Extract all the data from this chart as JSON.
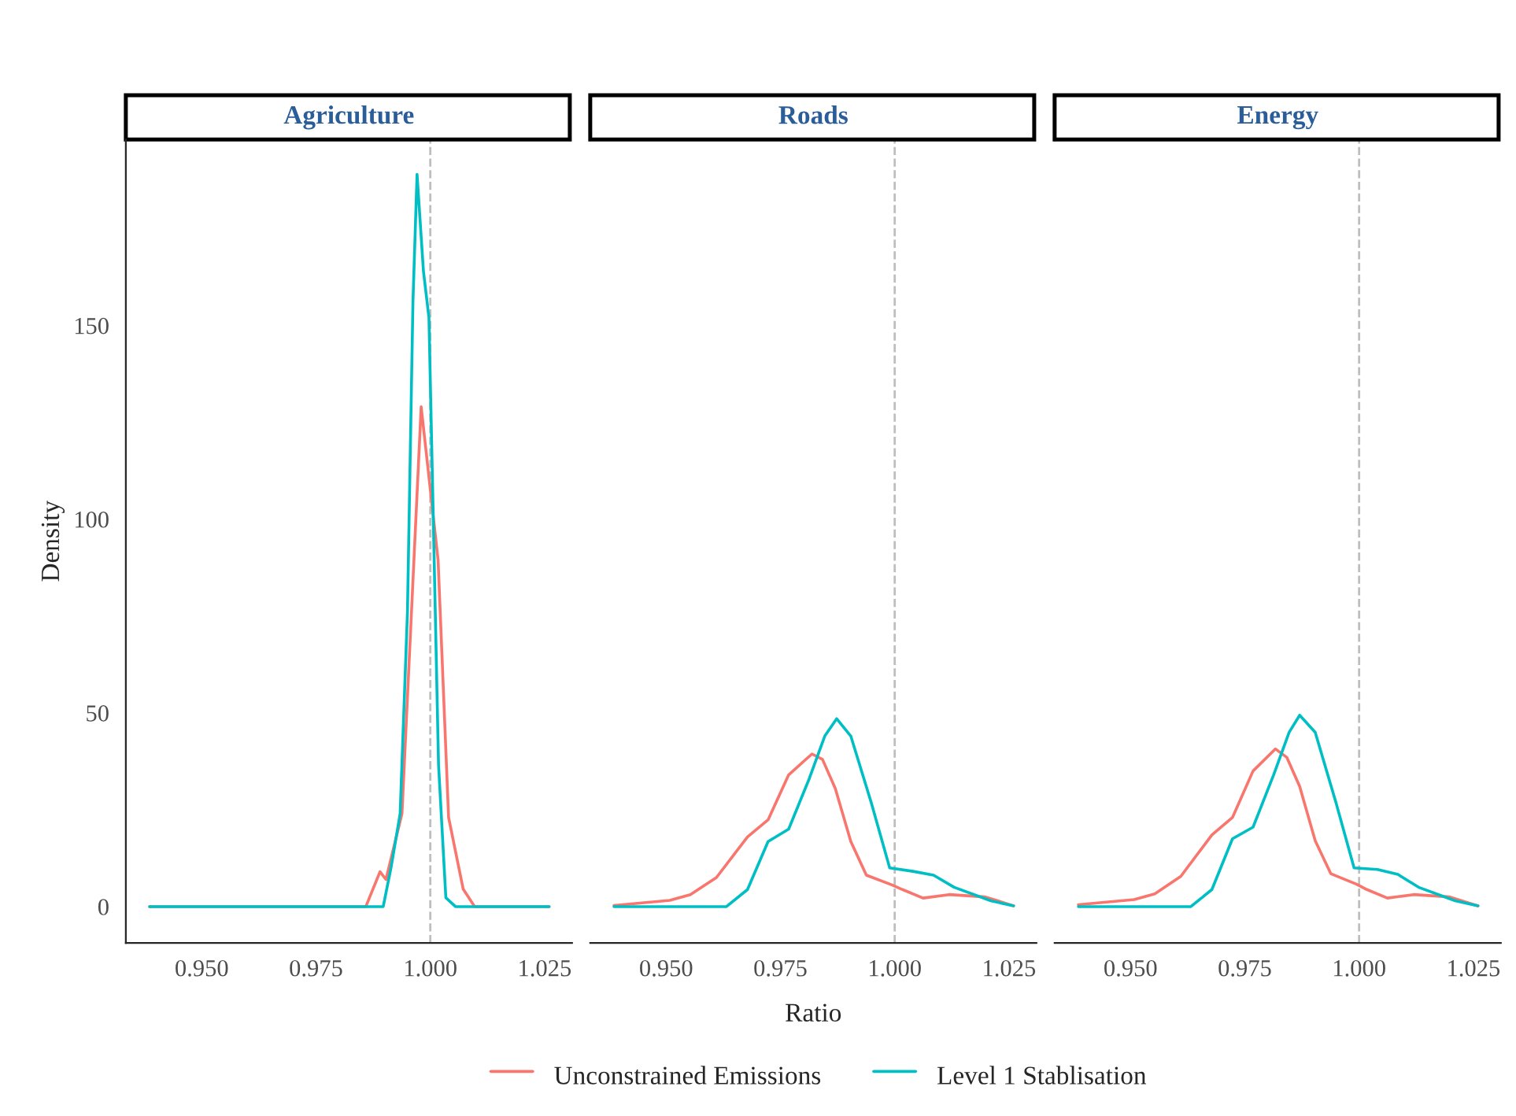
{
  "chart_data": [
    {
      "type": "line",
      "title": "Agriculture",
      "ylabel": "Density",
      "xlim": [
        0.9334,
        1.031
      ],
      "ylim": [
        -9.4,
        198
      ],
      "xticks": [
        {
          "value": 0.95,
          "label": "0.950"
        },
        {
          "value": 0.975,
          "label": "0.975"
        },
        {
          "value": 1.0,
          "label": "1.000"
        },
        {
          "value": 1.025,
          "label": "1.025"
        }
      ],
      "yticks": [
        0,
        50,
        100,
        150
      ],
      "grid": false,
      "marker": "none",
      "line_style": "solid",
      "legend": "bottom",
      "ref_lines": [
        {
          "axis": "x",
          "value": 1.0,
          "color": "#bebebe",
          "line_style": "dashed"
        }
      ],
      "series": [
        {
          "name": "Unconstrained Emissions",
          "color": "#f8766d",
          "x": [
            0.9386,
            0.9859,
            0.989,
            0.9903,
            0.9938,
            0.998,
            1.0017,
            1.004,
            1.0072,
            1.0097,
            1.026
          ],
          "values": [
            0,
            0,
            9,
            7,
            24,
            129,
            89.5,
            23,
            4.5,
            0,
            0
          ]
        },
        {
          "name": "Level 1 Stablisation",
          "color": "#00bfc4",
          "x": [
            0.9386,
            0.9897,
            0.9914,
            0.9934,
            0.995,
            0.9962,
            0.9971,
            0.9985,
            0.9997,
            1.0006,
            1.0018,
            1.0034,
            1.0055,
            1.026
          ],
          "values": [
            0,
            0,
            10,
            24,
            76,
            156,
            189,
            164,
            152,
            103,
            36.6,
            2.3,
            0,
            0
          ]
        }
      ]
    },
    {
      "type": "line",
      "title": "Roads",
      "xlabel": "Ratio",
      "xlim": [
        0.9334,
        1.031
      ],
      "ylim": [
        -9.4,
        198
      ],
      "tick_labels": "x",
      "xticks": [
        {
          "value": 0.95,
          "label": "0.950"
        },
        {
          "value": 0.975,
          "label": "0.975"
        },
        {
          "value": 1.0,
          "label": "1.000"
        },
        {
          "value": 1.025,
          "label": "1.025"
        }
      ],
      "grid": false,
      "marker": "none",
      "line_style": "solid",
      "ref_lines": [
        {
          "axis": "x",
          "value": 1.0,
          "color": "#bebebe",
          "line_style": "dashed"
        }
      ],
      "series": [
        {
          "color": "#f8766d",
          "x": [
            0.9386,
            0.9508,
            0.9553,
            0.961,
            0.9678,
            0.9723,
            0.9768,
            0.9819,
            0.9842,
            0.987,
            0.9904,
            0.9938,
            0.9994,
            1.0017,
            1.0062,
            1.0119,
            1.0198,
            1.026
          ],
          "values": [
            0.3,
            1.6,
            3.1,
            7.5,
            18,
            22.4,
            34,
            39.4,
            38,
            30.5,
            16.8,
            8.1,
            5.6,
            4.4,
            2.2,
            3.1,
            2.5,
            0.2
          ]
        },
        {
          "color": "#00bfc4",
          "x": [
            0.9386,
            0.9632,
            0.9678,
            0.9723,
            0.9768,
            0.9813,
            0.9847,
            0.9873,
            0.9904,
            0.9949,
            0.9989,
            1.004,
            1.0085,
            1.013,
            1.021,
            1.026
          ],
          "values": [
            0,
            0,
            4.4,
            16.8,
            20,
            33,
            44,
            48.5,
            44,
            26.7,
            10,
            9.1,
            8.1,
            5,
            1.5,
            0.2
          ]
        }
      ]
    },
    {
      "type": "line",
      "title": "Energy",
      "xlim": [
        0.9334,
        1.031
      ],
      "ylim": [
        -9.4,
        198
      ],
      "tick_labels": "x",
      "xticks": [
        {
          "value": 0.95,
          "label": "0.950"
        },
        {
          "value": 0.975,
          "label": "0.975"
        },
        {
          "value": 1.0,
          "label": "1.000"
        },
        {
          "value": 1.025,
          "label": "1.025"
        }
      ],
      "grid": false,
      "marker": "none",
      "line_style": "solid",
      "ref_lines": [
        {
          "axis": "x",
          "value": 1.0,
          "color": "#bebebe",
          "line_style": "dashed"
        }
      ],
      "series": [
        {
          "color": "#f8766d",
          "x": [
            0.9386,
            0.9508,
            0.9553,
            0.961,
            0.9678,
            0.9723,
            0.9768,
            0.9817,
            0.9842,
            0.987,
            0.9904,
            0.9938,
            0.9994,
            1.0017,
            1.0062,
            1.0119,
            1.0198,
            1.026
          ],
          "values": [
            0.5,
            1.8,
            3.3,
            7.8,
            18.5,
            23,
            35,
            40.7,
            38.5,
            31,
            17,
            8.5,
            5.8,
            4.4,
            2.2,
            3.1,
            2.5,
            0.2
          ]
        },
        {
          "color": "#00bfc4",
          "x": [
            0.9386,
            0.9632,
            0.9678,
            0.9723,
            0.9768,
            0.9813,
            0.9847,
            0.987,
            0.9904,
            0.9949,
            0.9989,
            1.004,
            1.0085,
            1.013,
            1.021,
            1.026
          ],
          "values": [
            0,
            0,
            4.4,
            17.5,
            20.5,
            34,
            45,
            49.4,
            45,
            27,
            10,
            9.6,
            8.3,
            5,
            1.5,
            0.2
          ]
        }
      ]
    }
  ]
}
